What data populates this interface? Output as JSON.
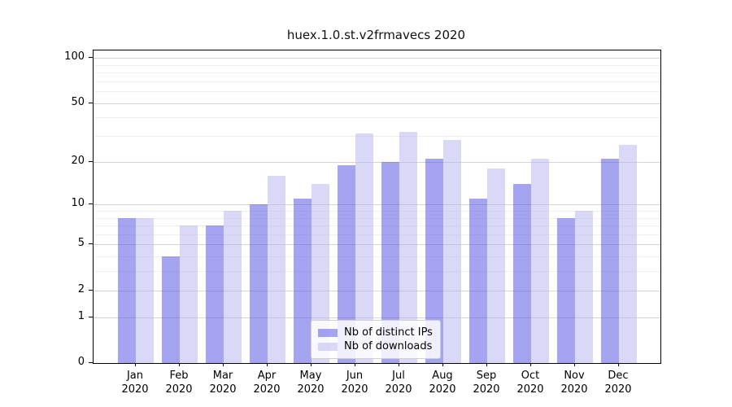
{
  "figure": {
    "title": "huex.1.0.st.v2frmavecs 2020"
  },
  "chart_data": {
    "type": "bar",
    "title": "huex.1.0.st.v2frmavecs 2020",
    "x": {
      "months": [
        "Jan",
        "Feb",
        "Mar",
        "Apr",
        "May",
        "Jun",
        "Jul",
        "Aug",
        "Sep",
        "Oct",
        "Nov",
        "Dec"
      ],
      "year": "2020"
    },
    "series": [
      {
        "name": "Nb of distinct IPs",
        "values": [
          8,
          4,
          7,
          10,
          11,
          19,
          20,
          21,
          11,
          14,
          8,
          21
        ],
        "fill": "rgba(73,73,227,0.5)",
        "rendered_color": "#a4a4f1"
      },
      {
        "name": "Nb of downloads",
        "values": [
          8,
          7,
          9,
          16,
          14,
          31,
          32,
          28,
          18,
          21,
          9,
          26
        ],
        "fill": "rgba(179,179,239,0.5)",
        "rendered_color": "#d9d9f7"
      }
    ],
    "y_axis": {
      "scale": "log1p",
      "ticks": [
        0,
        1,
        2,
        5,
        10,
        20,
        50,
        100
      ],
      "minor_gridlines": [
        3,
        4,
        6,
        7,
        8,
        9,
        30,
        40,
        60,
        70,
        80,
        90
      ],
      "ylim": [
        0,
        100
      ]
    },
    "legend": {
      "position": "inside-bottom-center",
      "entries": [
        "Nb of distinct IPs",
        "Nb of downloads"
      ]
    },
    "layout": {
      "grid": "horizontal-only",
      "bar_group": "two bars per month, touching, dark left / light right"
    }
  }
}
